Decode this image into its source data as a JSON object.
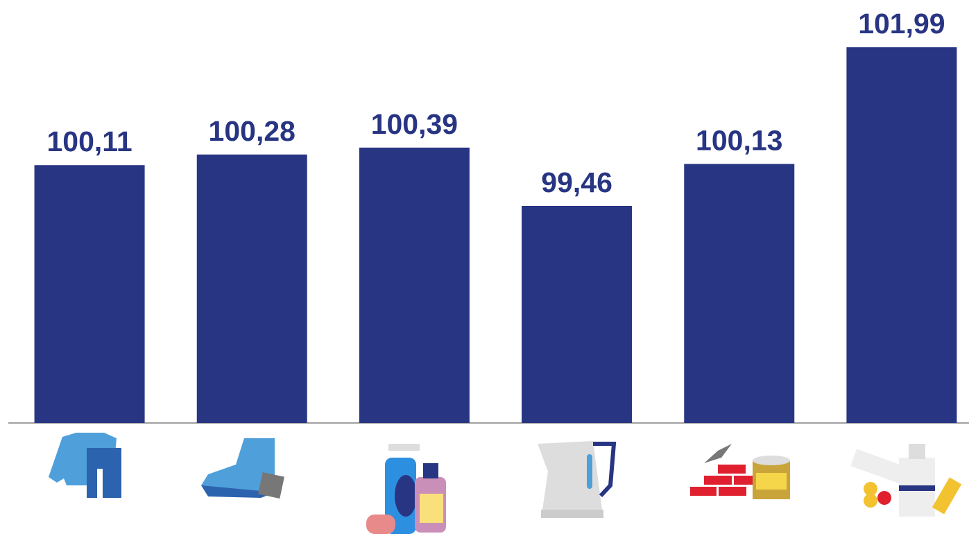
{
  "chart_data": {
    "type": "bar",
    "categories": [
      null,
      null,
      null,
      null,
      null,
      null
    ],
    "values": [
      100.11,
      100.28,
      100.39,
      99.46,
      100.13,
      101.99
    ],
    "value_labels": [
      "100,11",
      "100,28",
      "100,39",
      "99,46",
      "100,13",
      "101,99"
    ],
    "color": "#283583",
    "ylim": [
      96,
      102.5
    ]
  }
}
